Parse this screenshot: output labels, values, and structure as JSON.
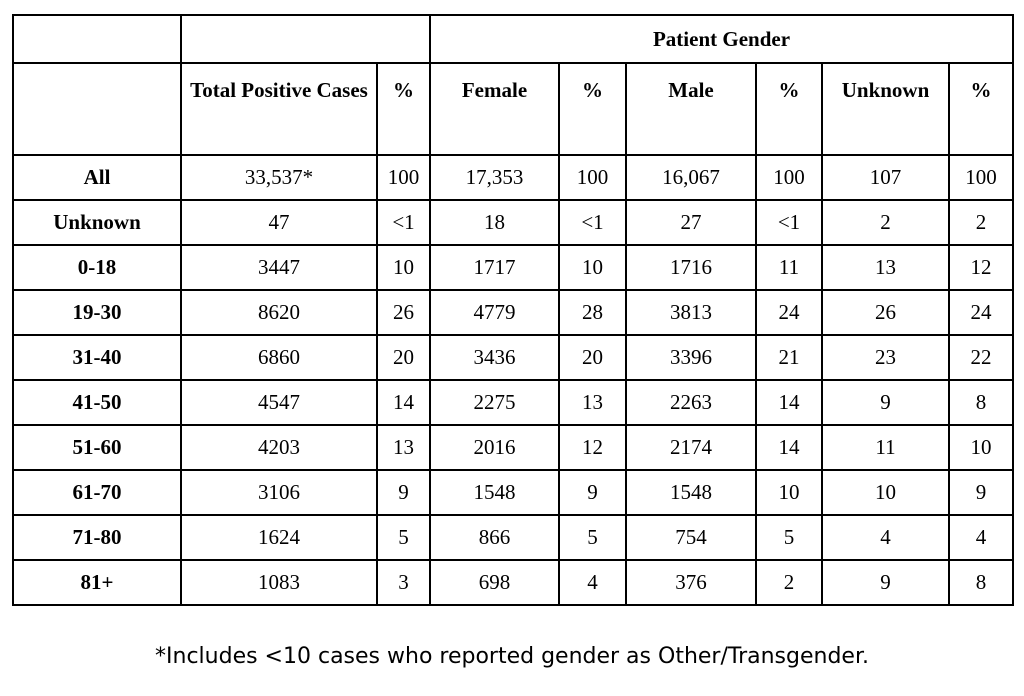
{
  "table": {
    "group_header": "Patient Gender",
    "columns": [
      {
        "label": ""
      },
      {
        "label": "Total Positive Cases"
      },
      {
        "label": "%"
      },
      {
        "label": "Female"
      },
      {
        "label": "%"
      },
      {
        "label": "Male"
      },
      {
        "label": "%"
      },
      {
        "label": "Unknown"
      },
      {
        "label": "%"
      }
    ],
    "rows": [
      {
        "label": "All",
        "values": [
          "33,537*",
          "100",
          "17,353",
          "100",
          "16,067",
          "100",
          "107",
          "100"
        ]
      },
      {
        "label": "Unknown",
        "values": [
          "47",
          "<1",
          "18",
          "<1",
          "27",
          "<1",
          "2",
          "2"
        ]
      },
      {
        "label": "0-18",
        "values": [
          "3447",
          "10",
          "1717",
          "10",
          "1716",
          "11",
          "13",
          "12"
        ]
      },
      {
        "label": "19-30",
        "values": [
          "8620",
          "26",
          "4779",
          "28",
          "3813",
          "24",
          "26",
          "24"
        ]
      },
      {
        "label": "31-40",
        "values": [
          "6860",
          "20",
          "3436",
          "20",
          "3396",
          "21",
          "23",
          "22"
        ]
      },
      {
        "label": "41-50",
        "values": [
          "4547",
          "14",
          "2275",
          "13",
          "2263",
          "14",
          "9",
          "8"
        ]
      },
      {
        "label": "51-60",
        "values": [
          "4203",
          "13",
          "2016",
          "12",
          "2174",
          "14",
          "11",
          "10"
        ]
      },
      {
        "label": "61-70",
        "values": [
          "3106",
          "9",
          "1548",
          "9",
          "1548",
          "10",
          "10",
          "9"
        ]
      },
      {
        "label": "71-80",
        "values": [
          "1624",
          "5",
          "866",
          "5",
          "754",
          "5",
          "4",
          "4"
        ]
      },
      {
        "label": "81+",
        "values": [
          "1083",
          "3",
          "698",
          "4",
          "376",
          "2",
          "9",
          "8"
        ]
      }
    ]
  },
  "footnote": "*Includes <10 cases who reported gender as Other/Transgender.",
  "colors": {
    "border": "#000000",
    "text": "#000000",
    "background": "#ffffff"
  },
  "chart_data": {
    "type": "table",
    "title": "Patient Gender",
    "columns": [
      "",
      "Total Positive Cases",
      "%",
      "Female",
      "%",
      "Male",
      "%",
      "Unknown",
      "%"
    ],
    "rows": [
      [
        "All",
        "33,537*",
        "100",
        "17,353",
        "100",
        "16,067",
        "100",
        "107",
        "100"
      ],
      [
        "Unknown",
        "47",
        "<1",
        "18",
        "<1",
        "27",
        "<1",
        "2",
        "2"
      ],
      [
        "0-18",
        "3447",
        "10",
        "1717",
        "10",
        "1716",
        "11",
        "13",
        "12"
      ],
      [
        "19-30",
        "8620",
        "26",
        "4779",
        "28",
        "3813",
        "24",
        "26",
        "24"
      ],
      [
        "31-40",
        "6860",
        "20",
        "3436",
        "20",
        "3396",
        "21",
        "23",
        "22"
      ],
      [
        "41-50",
        "4547",
        "14",
        "2275",
        "13",
        "2263",
        "14",
        "9",
        "8"
      ],
      [
        "51-60",
        "4203",
        "13",
        "2016",
        "12",
        "2174",
        "14",
        "11",
        "10"
      ],
      [
        "61-70",
        "3106",
        "9",
        "1548",
        "9",
        "1548",
        "10",
        "10",
        "9"
      ],
      [
        "71-80",
        "1624",
        "5",
        "866",
        "5",
        "754",
        "5",
        "4",
        "4"
      ],
      [
        "81+",
        "1083",
        "3",
        "698",
        "4",
        "376",
        "2",
        "9",
        "8"
      ]
    ],
    "annotations": [
      "*Includes <10 cases who reported gender as Other/Transgender."
    ]
  }
}
